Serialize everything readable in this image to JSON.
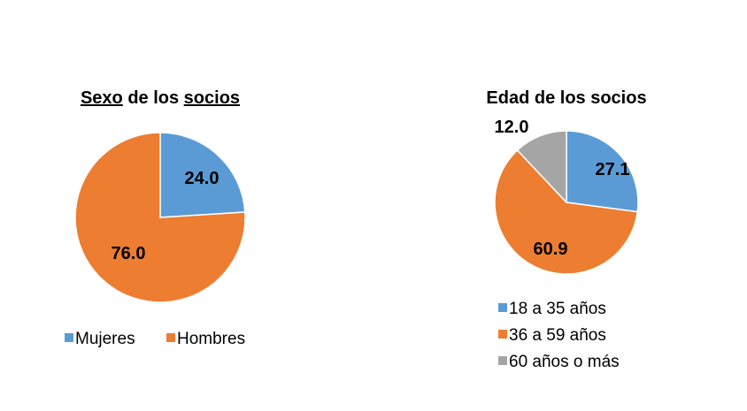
{
  "chart_data": [
    {
      "type": "pie",
      "title": "Sexo de los socios",
      "categories": [
        "Mujeres",
        "Hombres"
      ],
      "values": [
        24.0,
        76.0
      ],
      "colors": [
        "#5b9bd5",
        "#ed7d31"
      ],
      "legend": "bottom",
      "spellcheck_underlined_words": [
        "Sexo",
        "socios"
      ]
    },
    {
      "type": "pie",
      "title": "Edad de los socios",
      "categories": [
        "18 a 35 años",
        "36 a 59 años",
        "60 años o más"
      ],
      "values": [
        27.1,
        60.9,
        12.0
      ],
      "colors": [
        "#5b9bd5",
        "#ed7d31",
        "#a5a5a5"
      ],
      "legend": "bottom"
    }
  ]
}
